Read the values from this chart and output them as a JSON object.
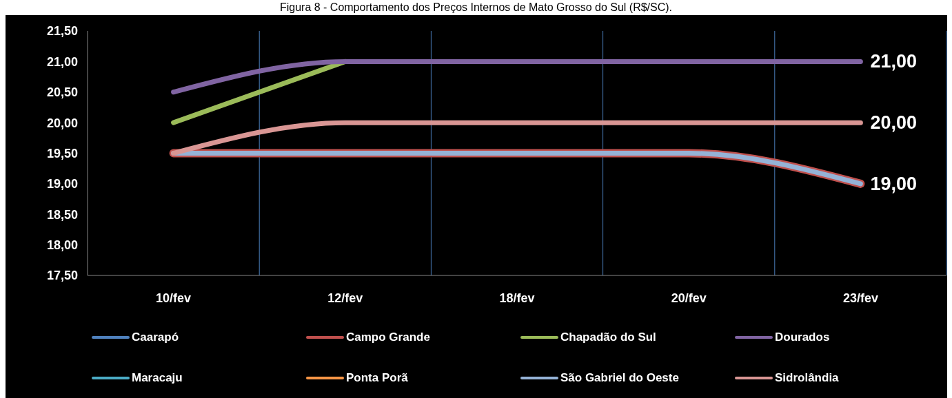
{
  "chart_data": {
    "type": "line",
    "title": "Figura 8 - Comportamento dos Preços Internos de Mato Grosso do Sul (R$/SC).",
    "categories": [
      "10/fev",
      "12/fev",
      "18/fev",
      "20/fev",
      "23/fev"
    ],
    "series": [
      {
        "name": "Caarapó",
        "color": "#4f81bd",
        "values": [
          null,
          null,
          null,
          null,
          null
        ]
      },
      {
        "name": "Campo Grande",
        "color": "#c0504d",
        "values": [
          19.5,
          19.5,
          19.5,
          19.5,
          19
        ]
      },
      {
        "name": "Chapadão do Sul",
        "color": "#9bbb59",
        "values": [
          20,
          21,
          null,
          null,
          null
        ]
      },
      {
        "name": "Dourados",
        "color": "#8064a2",
        "values": [
          20.5,
          21,
          21,
          21,
          21
        ],
        "value_labels": [
          null,
          null,
          null,
          null,
          "21,00"
        ]
      },
      {
        "name": "Maracaju",
        "color": "#4bacc6",
        "values": [
          null,
          null,
          null,
          null,
          null
        ]
      },
      {
        "name": "Ponta Porã",
        "color": "#f79646",
        "values": [
          null,
          null,
          null,
          null,
          null
        ]
      },
      {
        "name": "São Gabriel do Oeste",
        "color": "#95b3d7",
        "values": [
          19.5,
          19.5,
          19.5,
          19.5,
          19
        ],
        "value_labels": [
          null,
          null,
          null,
          null,
          "19,00"
        ]
      },
      {
        "name": "Sidrolândia",
        "color": "#d99694",
        "values": [
          19.5,
          20,
          20,
          20,
          20
        ],
        "value_labels": [
          null,
          null,
          null,
          null,
          "20,00"
        ]
      }
    ],
    "ylim": [
      17.5,
      21.5
    ],
    "yticks": [
      {
        "value": 17.5,
        "label": "17,50"
      },
      {
        "value": 18,
        "label": "18,00"
      },
      {
        "value": 18.5,
        "label": "18,50"
      },
      {
        "value": 19,
        "label": "19,00"
      },
      {
        "value": 19.5,
        "label": "19,50"
      },
      {
        "value": 20,
        "label": "20,00"
      },
      {
        "value": 20.5,
        "label": "20,50"
      },
      {
        "value": 21,
        "label": "21,00"
      },
      {
        "value": 21.5,
        "label": "21,50"
      }
    ],
    "grid": "x",
    "legend": "bottom"
  }
}
